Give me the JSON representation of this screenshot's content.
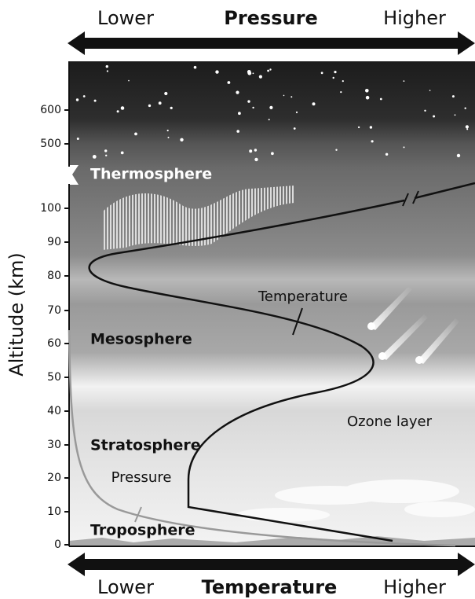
{
  "header": {
    "left": "Lower",
    "title": "Pressure",
    "right": "Higher"
  },
  "footer": {
    "left": "Lower",
    "title": "Temperature",
    "right": "Higher"
  },
  "y_axis": {
    "label": "Altitude (km)",
    "ticks": [
      "0",
      "10",
      "20",
      "30",
      "40",
      "50",
      "60",
      "70",
      "80",
      "90",
      "100",
      "500",
      "600"
    ]
  },
  "layers": [
    "Thermosphere",
    "Mesosphere",
    "Stratosphere",
    "Troposphere"
  ],
  "labels": {
    "temperature": "Temperature",
    "pressure": "Pressure",
    "ozone": "Ozone layer"
  }
}
